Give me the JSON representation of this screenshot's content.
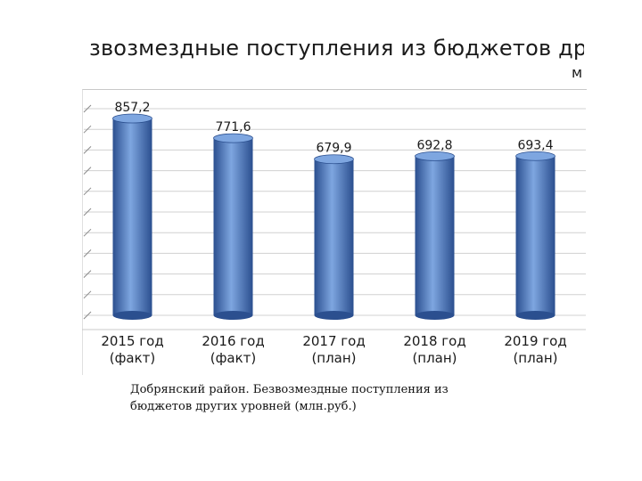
{
  "slide": {
    "title": "звозмездные поступления из бюджетов других уро",
    "title_tail": "м"
  },
  "chart_data": {
    "type": "bar",
    "title": "",
    "xlabel": "",
    "ylabel": "",
    "categories": [
      [
        "2015 год",
        "(факт)"
      ],
      [
        "2016 год",
        "(факт)"
      ],
      [
        "2017 год",
        "(план)"
      ],
      [
        "2018 год",
        "(план)"
      ],
      [
        "2019 год",
        "(план)"
      ]
    ],
    "values": [
      857.2,
      771.6,
      679.9,
      692.8,
      693.4
    ],
    "value_labels": [
      "857,2",
      "771,6",
      "679,9",
      "692,8",
      "693,4"
    ],
    "ylim": [
      0,
      900
    ],
    "grid": true,
    "bar_color": "#4472c4",
    "bar_dark": "#2b4f8f",
    "bar_light": "#7ea6e0"
  },
  "caption": {
    "line1": "Добрянский район. Безвозмездные поступления из",
    "line2": "бюджетов других уровней (млн.руб.)"
  }
}
